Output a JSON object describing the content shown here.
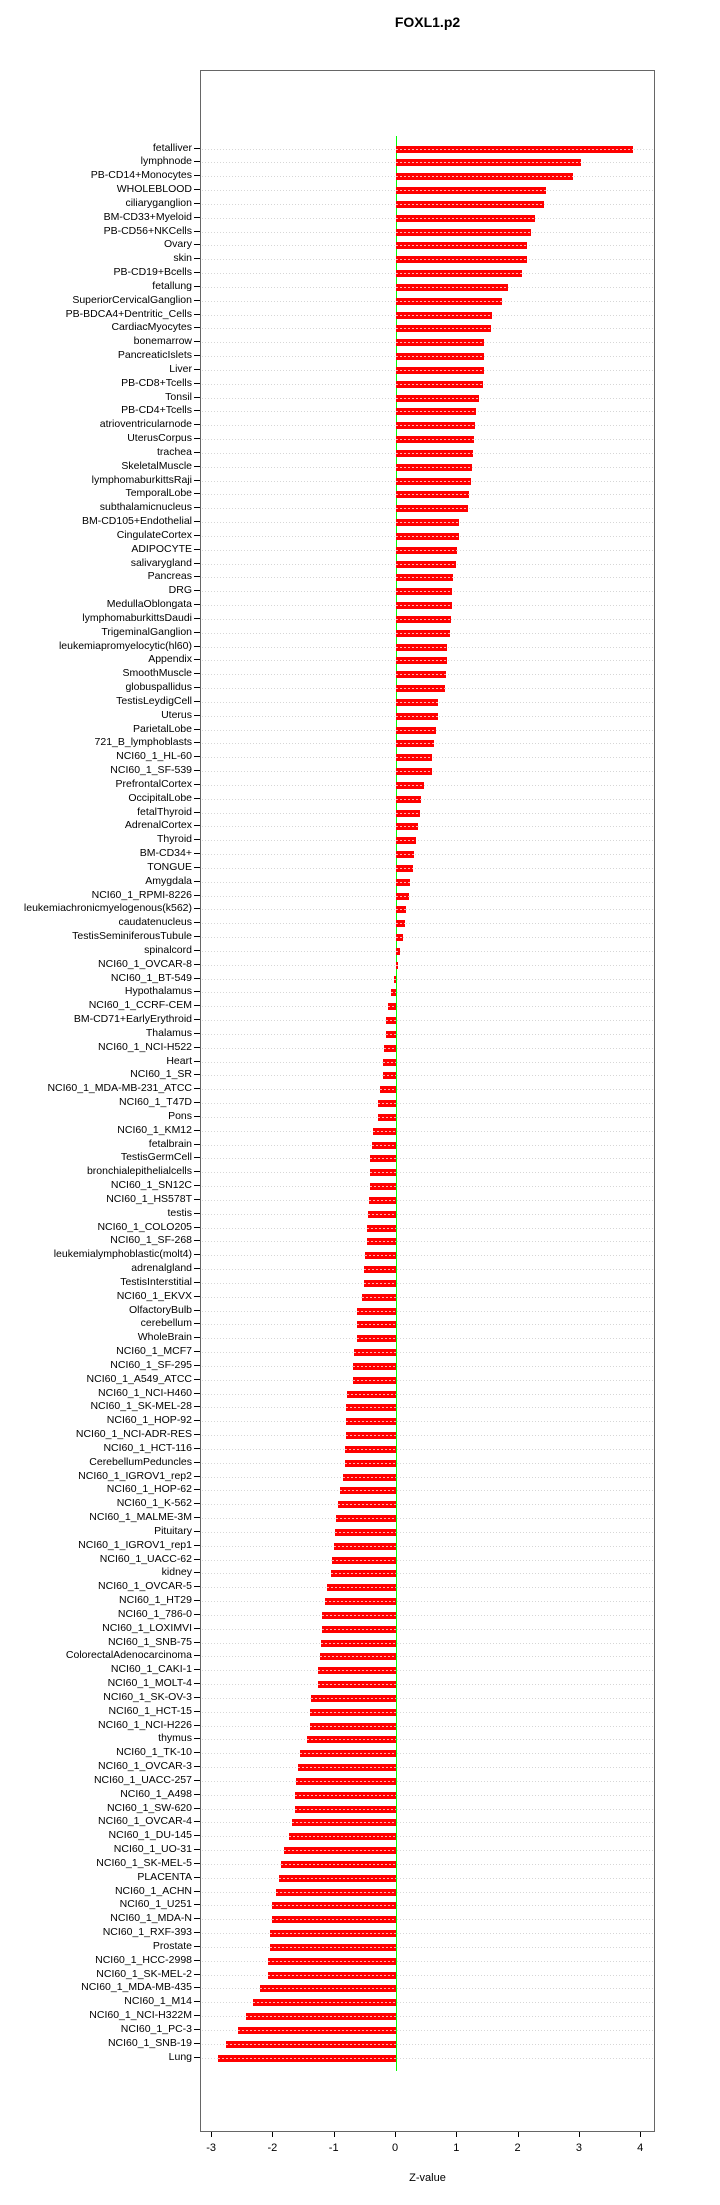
{
  "chart_data": {
    "type": "bar",
    "orientation": "horizontal",
    "title": "FOXL1.p2",
    "xlabel": "Z-value",
    "xlim": [
      -3.2,
      4.2
    ],
    "grid": true,
    "legend": "none",
    "bar_color": "#ff0000",
    "zero_line_color": "#00ff00",
    "x_ticks": [
      -3,
      -2,
      -1,
      0,
      1,
      2,
      3,
      4
    ],
    "categories": [
      "fetalliver",
      "lymphnode",
      "PB-CD14+Monocytes",
      "WHOLEBLOOD",
      "ciliaryganglion",
      "BM-CD33+Myeloid",
      "PB-CD56+NKCells",
      "Ovary",
      "skin",
      "PB-CD19+Bcells",
      "fetallung",
      "SuperiorCervicalGanglion",
      "PB-BDCA4+Dentritic_Cells",
      "CardiacMyocytes",
      "bonemarrow",
      "PancreaticIslets",
      "Liver",
      "PB-CD8+Tcells",
      "Tonsil",
      "PB-CD4+Tcells",
      "atrioventricularnode",
      "UterusCorpus",
      "trachea",
      "SkeletalMuscle",
      "lymphomaburkittsRaji",
      "TemporalLobe",
      "subthalamicnucleus",
      "BM-CD105+Endothelial",
      "CingulateCortex",
      "ADIPOCYTE",
      "salivarygland",
      "Pancreas",
      "DRG",
      "MedullaOblongata",
      "lymphomaburkittsDaudi",
      "TrigeminalGanglion",
      "leukemiapromyelocytic(hl60)",
      "Appendix",
      "SmoothMuscle",
      "globuspallidus",
      "TestisLeydigCell",
      "Uterus",
      "ParietalLobe",
      "721_B_lymphoblasts",
      "NCI60_1_HL-60",
      "NCI60_1_SF-539",
      "PrefrontalCortex",
      "OccipitalLobe",
      "fetalThyroid",
      "AdrenalCortex",
      "Thyroid",
      "BM-CD34+",
      "TONGUE",
      "Amygdala",
      "NCI60_1_RPMI-8226",
      "leukemiachronicmyelogenous(k562)",
      "caudatenucleus",
      "TestisSeminiferousTubule",
      "spinalcord",
      "NCI60_1_OVCAR-8",
      "NCI60_1_BT-549",
      "Hypothalamus",
      "NCI60_1_CCRF-CEM",
      "BM-CD71+EarlyErythroid",
      "Thalamus",
      "NCI60_1_NCI-H522",
      "Heart",
      "NCI60_1_SR",
      "NCI60_1_MDA-MB-231_ATCC",
      "NCI60_1_T47D",
      "Pons",
      "NCI60_1_KM12",
      "fetalbrain",
      "TestisGermCell",
      "bronchialepithelialcells",
      "NCI60_1_SN12C",
      "NCI60_1_HS578T",
      "testis",
      "NCI60_1_COLO205",
      "NCI60_1_SF-268",
      "leukemialymphoblastic(molt4)",
      "adrenalgland",
      "TestisInterstitial",
      "NCI60_1_EKVX",
      "OlfactoryBulb",
      "cerebellum",
      "WholeBrain",
      "NCI60_1_MCF7",
      "NCI60_1_SF-295",
      "NCI60_1_A549_ATCC",
      "NCI60_1_NCI-H460",
      "NCI60_1_SK-MEL-28",
      "NCI60_1_HOP-92",
      "NCI60_1_NCI-ADR-RES",
      "NCI60_1_HCT-116",
      "CerebellumPeduncles",
      "NCI60_1_IGROV1_rep2",
      "NCI60_1_HOP-62",
      "NCI60_1_K-562",
      "NCI60_1_MALME-3M",
      "Pituitary",
      "NCI60_1_IGROV1_rep1",
      "NCI60_1_UACC-62",
      "kidney",
      "NCI60_1_OVCAR-5",
      "NCI60_1_HT29",
      "NCI60_1_786-0",
      "NCI60_1_LOXIMVI",
      "NCI60_1_SNB-75",
      "ColorectalAdenocarcinoma",
      "NCI60_1_CAKI-1",
      "NCI60_1_MOLT-4",
      "NCI60_1_SK-OV-3",
      "NCI60_1_HCT-15",
      "NCI60_1_NCI-H226",
      "thymus",
      "NCI60_1_TK-10",
      "NCI60_1_OVCAR-3",
      "NCI60_1_UACC-257",
      "NCI60_1_A498",
      "NCI60_1_SW-620",
      "NCI60_1_OVCAR-4",
      "NCI60_1_DU-145",
      "NCI60_1_UO-31",
      "NCI60_1_SK-MEL-5",
      "PLACENTA",
      "NCI60_1_ACHN",
      "NCI60_1_U251",
      "NCI60_1_MDA-N",
      "NCI60_1_RXF-393",
      "Prostate",
      "NCI60_1_HCC-2998",
      "NCI60_1_SK-MEL-2",
      "NCI60_1_MDA-MB-435",
      "NCI60_1_M14",
      "NCI60_1_NCI-H322M",
      "NCI60_1_PC-3",
      "NCI60_1_SNB-19",
      "Lung"
    ],
    "values": [
      3.87,
      3.02,
      2.88,
      2.45,
      2.42,
      2.27,
      2.21,
      2.14,
      2.13,
      2.06,
      1.83,
      1.73,
      1.56,
      1.55,
      1.44,
      1.44,
      1.43,
      1.42,
      1.35,
      1.3,
      1.29,
      1.27,
      1.25,
      1.24,
      1.22,
      1.19,
      1.17,
      1.02,
      1.02,
      0.99,
      0.98,
      0.93,
      0.92,
      0.91,
      0.89,
      0.88,
      0.84,
      0.84,
      0.81,
      0.8,
      0.69,
      0.69,
      0.65,
      0.62,
      0.59,
      0.58,
      0.46,
      0.4,
      0.39,
      0.36,
      0.32,
      0.3,
      0.27,
      0.23,
      0.22,
      0.16,
      0.15,
      0.11,
      0.06,
      0.03,
      -0.04,
      -0.08,
      -0.13,
      -0.16,
      -0.16,
      -0.19,
      -0.21,
      -0.22,
      -0.26,
      -0.29,
      -0.3,
      -0.38,
      -0.39,
      -0.42,
      -0.43,
      -0.43,
      -0.44,
      -0.45,
      -0.47,
      -0.48,
      -0.51,
      -0.52,
      -0.53,
      -0.55,
      -0.63,
      -0.64,
      -0.64,
      -0.68,
      -0.7,
      -0.7,
      -0.8,
      -0.81,
      -0.82,
      -0.82,
      -0.84,
      -0.84,
      -0.86,
      -0.92,
      -0.94,
      -0.98,
      -1.0,
      -1.01,
      -1.04,
      -1.06,
      -1.12,
      -1.16,
      -1.2,
      -1.2,
      -1.22,
      -1.24,
      -1.27,
      -1.27,
      -1.39,
      -1.41,
      -1.41,
      -1.46,
      -1.57,
      -1.6,
      -1.63,
      -1.64,
      -1.65,
      -1.69,
      -1.74,
      -1.83,
      -1.88,
      -1.91,
      -1.95,
      -2.03,
      -2.03,
      -2.06,
      -2.06,
      -2.08,
      -2.09,
      -2.22,
      -2.33,
      -2.45,
      -2.57,
      -2.77,
      -2.9
    ]
  }
}
